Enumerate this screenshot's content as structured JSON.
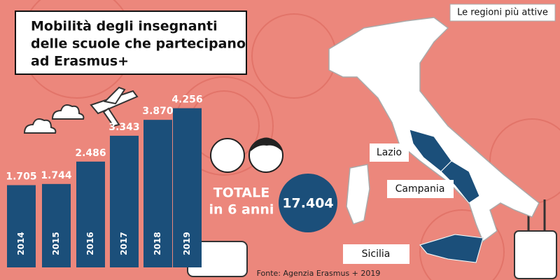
{
  "chart_data": {
    "type": "bar",
    "title": [
      "Mobilità degli insegnanti",
      "delle scuole che partecipano",
      "ad Erasmus+"
    ],
    "categories": [
      "2014",
      "2015",
      "2016",
      "2017",
      "2018",
      "2019"
    ],
    "values": [
      1705,
      1744,
      2486,
      3343,
      3870,
      4256
    ],
    "value_labels": [
      "1.705",
      "1.744",
      "2.486",
      "3.343",
      "3.870",
      "4.256"
    ],
    "color": "#1b4f7a"
  },
  "total": {
    "label": [
      "TOTALE",
      "in 6 anni"
    ],
    "value": 17404,
    "value_label": "17.404"
  },
  "map": {
    "title": "Le regioni più attive",
    "regions": [
      "Lazio",
      "Campania",
      "Sicilia"
    ]
  },
  "source": "Fonte: Agenzia Erasmus + 2019"
}
